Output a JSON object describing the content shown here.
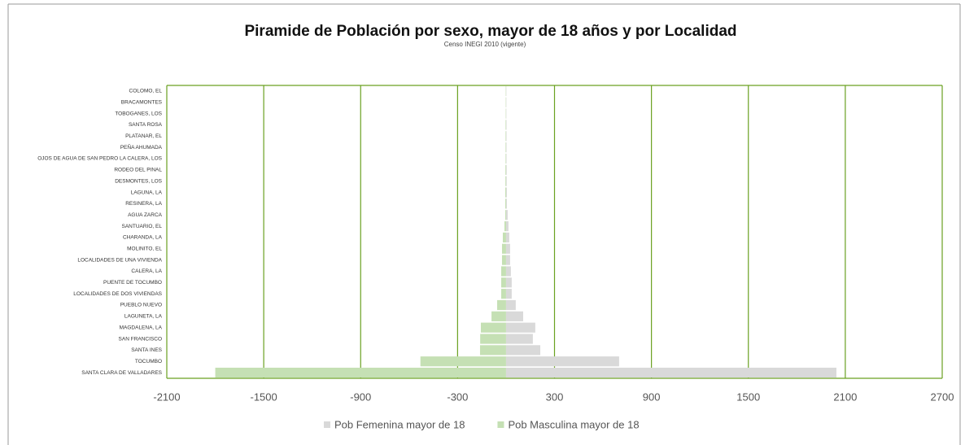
{
  "chart_data": {
    "type": "bar",
    "orientation": "horizontal",
    "title": "Piramide de Población por sexo, mayor de 18 años y por Localidad",
    "subtitle": "Censo INEGI 2010 (vigente)",
    "categories": [
      "COLOMO, EL",
      "BRACAMONTES",
      "TOBOGANES, LOS",
      "SANTA ROSA",
      "PLATANAR, EL",
      "PEÑA AHUMADA",
      "OJOS DE AGUA DE SAN PEDRO LA CALERA, LOS",
      "RODEO DEL PINAL",
      "DESMONTES, LOS",
      "LAGUNA, LA",
      "RESINERA, LA",
      "AGUA ZARCA",
      "SANTUARIO, EL",
      "CHARANDA, LA",
      "MOLINITO, EL",
      "LOCALIDADES DE UNA VIVIENDA",
      "CALERA, LA",
      "PUENTE DE TOCUMBO",
      "LOCALIDADES DE DOS VIVIENDAS",
      "PUEBLO NUEVO",
      "LAGUNETA, LA",
      "MAGDALENA, LA",
      "SAN FRANCISCO",
      "SANTA INES",
      "TOCUMBO",
      "SANTA CLARA DE VALLADARES"
    ],
    "series": [
      {
        "name": "Pob Femenina mayor de 18",
        "color": "#d9d9d9",
        "values": [
          2,
          2,
          2,
          3,
          3,
          3,
          3,
          4,
          4,
          5,
          5,
          10,
          15,
          20,
          25,
          25,
          30,
          35,
          35,
          60,
          106,
          181,
          166,
          212,
          700,
          2045
        ]
      },
      {
        "name": "Pob Masculina mayor de 18",
        "color": "#c5e0b4",
        "values": [
          -2,
          -2,
          -2,
          -3,
          -3,
          -3,
          -3,
          -4,
          -4,
          -5,
          -5,
          -5,
          -10,
          -20,
          -25,
          -25,
          -30,
          -30,
          -30,
          -55,
          -90,
          -156,
          -160,
          -161,
          -530,
          -1800
        ]
      }
    ],
    "xlim": [
      -2100,
      2700
    ],
    "xticks": [
      -2100,
      -1500,
      -900,
      -300,
      300,
      900,
      1500,
      2100,
      2700
    ],
    "grid": true,
    "grid_color": "#6aa121",
    "legend": "bottom"
  }
}
